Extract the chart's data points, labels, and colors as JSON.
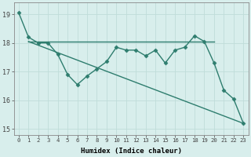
{
  "xlabel": "Humidex (Indice chaleur)",
  "xlim": [
    -0.5,
    23.5
  ],
  "ylim": [
    14.8,
    19.4
  ],
  "yticks": [
    15,
    16,
    17,
    18,
    19
  ],
  "xticks": [
    0,
    1,
    2,
    3,
    4,
    5,
    6,
    7,
    8,
    9,
    10,
    11,
    12,
    13,
    14,
    15,
    16,
    17,
    18,
    19,
    20,
    21,
    22,
    23
  ],
  "bg_color": "#d8eeec",
  "line_color": "#2e7d6e",
  "grid_color": "#c0ddd9",
  "series": [
    {
      "x": [
        0,
        1,
        2,
        3,
        4,
        5,
        6,
        7,
        8,
        9,
        10,
        11,
        12,
        13,
        14,
        15,
        16,
        17,
        18,
        19,
        20,
        21,
        22,
        23
      ],
      "y": [
        19.05,
        18.2,
        18.0,
        18.0,
        17.6,
        16.9,
        16.55,
        16.85,
        17.1,
        17.35,
        17.85,
        17.75,
        17.75,
        17.55,
        17.75,
        17.3,
        17.75,
        17.85,
        18.25,
        18.05,
        17.3,
        16.35,
        16.05,
        15.2
      ],
      "marker": "D",
      "markersize": 2.5,
      "linewidth": 1.0
    },
    {
      "x": [
        1,
        23
      ],
      "y": [
        18.05,
        15.2
      ],
      "marker": null,
      "markersize": 0,
      "linewidth": 1.0
    },
    {
      "x": [
        1,
        20
      ],
      "y": [
        18.05,
        18.05
      ],
      "marker": null,
      "markersize": 0,
      "linewidth": 1.0
    }
  ]
}
